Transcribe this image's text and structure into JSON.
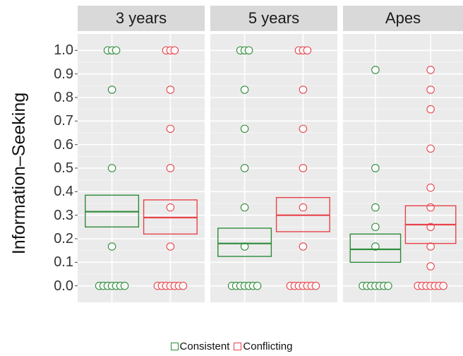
{
  "chart_data": {
    "type": "box",
    "facets": [
      "3 years",
      "5 years",
      "Apes"
    ],
    "ylabel": "Information–Seeking",
    "yticks": [
      "0.0",
      "0.1",
      "0.2",
      "0.3",
      "0.4",
      "0.5",
      "0.6",
      "0.7",
      "0.8",
      "0.9",
      "1.0"
    ],
    "ylim": [
      -0.07,
      1.07
    ],
    "grid": true,
    "legend_position": "bottom",
    "series": [
      {
        "name": "Consistent",
        "color": "#2e8b3a"
      },
      {
        "name": "Conflicting",
        "color": "#e8434a"
      }
    ],
    "boxes": [
      {
        "facet": "3 years",
        "series": "Consistent",
        "q1": 0.25,
        "median": 0.315,
        "q3": 0.385
      },
      {
        "facet": "3 years",
        "series": "Conflicting",
        "q1": 0.22,
        "median": 0.29,
        "q3": 0.365
      },
      {
        "facet": "5 years",
        "series": "Consistent",
        "q1": 0.125,
        "median": 0.18,
        "q3": 0.245
      },
      {
        "facet": "5 years",
        "series": "Conflicting",
        "q1": 0.23,
        "median": 0.3,
        "q3": 0.375
      },
      {
        "facet": "Apes",
        "series": "Consistent",
        "q1": 0.1,
        "median": 0.155,
        "q3": 0.22
      },
      {
        "facet": "Apes",
        "series": "Conflicting",
        "q1": 0.18,
        "median": 0.26,
        "q3": 0.34
      }
    ],
    "points": [
      {
        "facet": "3 years",
        "series": "Consistent",
        "y": [
          0.0,
          0.167,
          0.5,
          0.833,
          1.0
        ]
      },
      {
        "facet": "3 years",
        "series": "Conflicting",
        "y": [
          0.0,
          0.167,
          0.333,
          0.5,
          0.667,
          0.833,
          1.0
        ]
      },
      {
        "facet": "5 years",
        "series": "Consistent",
        "y": [
          0.0,
          0.167,
          0.333,
          0.5,
          0.667,
          0.833,
          1.0
        ]
      },
      {
        "facet": "5 years",
        "series": "Conflicting",
        "y": [
          0.0,
          0.167,
          0.333,
          0.5,
          0.667,
          0.833,
          1.0
        ]
      },
      {
        "facet": "Apes",
        "series": "Consistent",
        "y": [
          0.0,
          0.167,
          0.25,
          0.333,
          0.5,
          0.917
        ]
      },
      {
        "facet": "Apes",
        "series": "Conflicting",
        "y": [
          0.0,
          0.083,
          0.167,
          0.25,
          0.333,
          0.417,
          0.583,
          0.75,
          0.833,
          0.917
        ]
      }
    ]
  }
}
